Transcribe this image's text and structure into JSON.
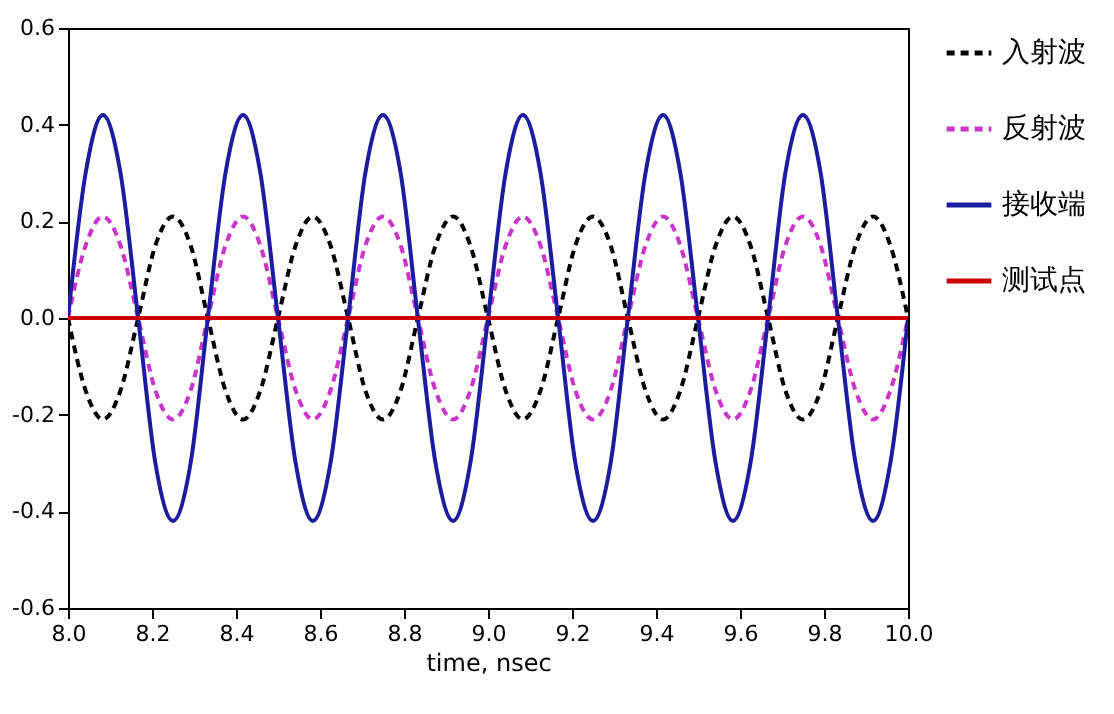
{
  "chart_data": {
    "type": "line",
    "xlabel": "time, nsec",
    "x": [
      8.0,
      8.042,
      8.083,
      8.125,
      8.167,
      8.208,
      8.25,
      8.292,
      8.333,
      8.375,
      8.417,
      8.458,
      8.5,
      8.542,
      8.583,
      8.625,
      8.667,
      8.708,
      8.75,
      8.792,
      8.833,
      8.875,
      8.917,
      8.958,
      9.0,
      9.042,
      9.083,
      9.125,
      9.167,
      9.208,
      9.25,
      9.292,
      9.333,
      9.375,
      9.417,
      9.458,
      9.5,
      9.542,
      9.583,
      9.625,
      9.667,
      9.708,
      9.75,
      9.792,
      9.833,
      9.875,
      9.917,
      9.958,
      10.0
    ],
    "series": [
      {
        "name": "入射波",
        "color": "#000000",
        "line_style": "dashed",
        "values": [
          0,
          -0.15,
          -0.21,
          -0.15,
          0,
          0.15,
          0.21,
          0.15,
          0,
          -0.15,
          -0.21,
          -0.15,
          0,
          0.15,
          0.21,
          0.15,
          0,
          -0.15,
          -0.21,
          -0.15,
          0,
          0.15,
          0.21,
          0.15,
          0,
          -0.15,
          -0.21,
          -0.15,
          0,
          0.15,
          0.21,
          0.15,
          0,
          -0.15,
          -0.21,
          -0.15,
          0,
          0.15,
          0.21,
          0.15,
          0,
          -0.15,
          -0.21,
          -0.15,
          0,
          0.15,
          0.21,
          0.15,
          0
        ]
      },
      {
        "name": "反射波",
        "color": "#cc33cc",
        "line_style": "dashed",
        "values": [
          0,
          0.15,
          0.21,
          0.15,
          0,
          -0.15,
          -0.21,
          -0.15,
          0,
          0.15,
          0.21,
          0.15,
          0,
          -0.15,
          -0.21,
          -0.15,
          0,
          0.15,
          0.21,
          0.15,
          0,
          -0.15,
          -0.21,
          -0.15,
          0,
          0.15,
          0.21,
          0.15,
          0,
          -0.15,
          -0.21,
          -0.15,
          0,
          0.15,
          0.21,
          0.15,
          0,
          -0.15,
          -0.21,
          -0.15,
          0,
          0.15,
          0.21,
          0.15,
          0,
          -0.15,
          -0.21,
          -0.15,
          0
        ]
      },
      {
        "name": "接收端",
        "color": "#1c1ca0",
        "line_style": "solid",
        "values": [
          0,
          0.3,
          0.42,
          0.3,
          0,
          -0.3,
          -0.42,
          -0.3,
          0,
          0.3,
          0.42,
          0.3,
          0,
          -0.3,
          -0.42,
          -0.3,
          0,
          0.3,
          0.42,
          0.3,
          0,
          -0.3,
          -0.42,
          -0.3,
          0,
          0.3,
          0.42,
          0.3,
          0,
          -0.3,
          -0.42,
          -0.3,
          0,
          0.3,
          0.42,
          0.3,
          0,
          -0.3,
          -0.42,
          -0.3,
          0,
          0.3,
          0.42,
          0.3,
          0,
          -0.3,
          -0.42,
          -0.3,
          0
        ]
      },
      {
        "name": "测试点",
        "color": "#cc0000",
        "line_style": "solid",
        "values": [
          0,
          0,
          0,
          0,
          0,
          0,
          0,
          0,
          0,
          0,
          0,
          0,
          0,
          0,
          0,
          0,
          0,
          0,
          0,
          0,
          0,
          0,
          0,
          0,
          0,
          0,
          0,
          0,
          0,
          0,
          0,
          0,
          0,
          0,
          0,
          0,
          0,
          0,
          0,
          0,
          0,
          0,
          0,
          0,
          0,
          0,
          0,
          0,
          0
        ]
      }
    ],
    "xlim": [
      8.0,
      10.0
    ],
    "xticks": [
      {
        "value": 8,
        "label": "8.0"
      },
      {
        "value": 8.2,
        "label": "8.2"
      },
      {
        "value": 8.4,
        "label": "8.4"
      },
      {
        "value": 8.6,
        "label": "8.6"
      },
      {
        "value": 8.8,
        "label": "8.8"
      },
      {
        "value": 9,
        "label": "9.0"
      },
      {
        "value": 9.2,
        "label": "9.2"
      },
      {
        "value": 9.4,
        "label": "9.4"
      },
      {
        "value": 9.6,
        "label": "9.6"
      },
      {
        "value": 9.8,
        "label": "9.8"
      },
      {
        "value": 10,
        "label": "10.0"
      }
    ],
    "ylim": [
      -0.6,
      0.6
    ],
    "yticks": [
      {
        "value": -0.6,
        "label": "-0.6"
      },
      {
        "value": -0.4,
        "label": "-0.4"
      },
      {
        "value": -0.2,
        "label": "-0.2"
      },
      {
        "value": 0,
        "label": "0.0"
      },
      {
        "value": 0.2,
        "label": "0.2"
      },
      {
        "value": 0.4,
        "label": "0.4"
      },
      {
        "value": 0.6,
        "label": "0.6"
      }
    ],
    "legend": "right",
    "grid": false
  }
}
